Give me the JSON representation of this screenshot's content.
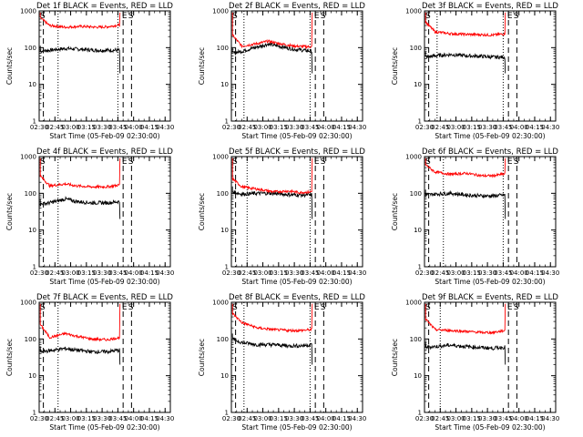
{
  "figure": {
    "colors": {
      "background": "#ffffff",
      "events": "#000000",
      "lld": "#ff0000",
      "axes": "#000000"
    }
  },
  "chart_data": [
    {
      "type": "line",
      "title": "Det 1f BLACK = Events, RED = LLD",
      "xlabel": "Start Time (05-Feb-09 02:30:00)",
      "ylabel": "Counts/sec",
      "yscale": "log",
      "ylim": [
        1,
        1000
      ],
      "y_ticks": [
        "1",
        "10",
        "100",
        "1000"
      ],
      "xlim": [
        "02:30",
        "04:35"
      ],
      "x_ticks": [
        "02:30",
        "02:45",
        "03:00",
        "03:15",
        "03:30",
        "03:45",
        "04:00",
        "04:15",
        "04:30"
      ],
      "vlines_dashed": [
        "02:34",
        "03:50",
        "03:58"
      ],
      "vlines_dotted": [
        "02:48",
        "03:45"
      ],
      "markers": [
        {
          "label": "S",
          "time": "02:30"
        },
        {
          "label": "E",
          "time": "03:48"
        },
        {
          "label": "S",
          "time": "03:54"
        }
      ],
      "series": [
        {
          "name": "Events",
          "color": "#000000",
          "x": [
            "02:31",
            "02:40",
            "02:55",
            "03:10",
            "03:25",
            "03:35",
            "03:47"
          ],
          "y": [
            80,
            85,
            95,
            90,
            85,
            85,
            85
          ]
        },
        {
          "name": "LLD",
          "color": "#ff0000",
          "x": [
            "02:31",
            "02:40",
            "02:55",
            "03:10",
            "03:25",
            "03:35",
            "03:47"
          ],
          "y": [
            650,
            400,
            360,
            380,
            360,
            370,
            420
          ]
        }
      ]
    },
    {
      "type": "line",
      "title": "Det 2f BLACK = Events, RED = LLD",
      "xlabel": "Start Time (05-Feb-09 02:30:00)",
      "ylabel": "Counts/sec",
      "yscale": "log",
      "ylim": [
        1,
        1000
      ],
      "y_ticks": [
        "1",
        "10",
        "100",
        "1000"
      ],
      "xlim": [
        "02:30",
        "04:35"
      ],
      "x_ticks": [
        "02:30",
        "02:45",
        "03:00",
        "03:15",
        "03:30",
        "03:45",
        "04:00",
        "04:15",
        "04:30"
      ],
      "vlines_dashed": [
        "02:34",
        "03:50",
        "03:58"
      ],
      "vlines_dotted": [
        "02:42",
        "03:45"
      ],
      "markers": [
        {
          "label": "S",
          "time": "02:30"
        },
        {
          "label": "E",
          "time": "03:48"
        },
        {
          "label": "S",
          "time": "03:54"
        }
      ],
      "series": [
        {
          "name": "Events",
          "color": "#000000",
          "x": [
            "02:31",
            "02:40",
            "02:55",
            "03:05",
            "03:15",
            "03:30",
            "03:47"
          ],
          "y": [
            70,
            80,
            105,
            125,
            110,
            90,
            80
          ]
        },
        {
          "name": "LLD",
          "color": "#ff0000",
          "x": [
            "02:31",
            "02:40",
            "02:55",
            "03:05",
            "03:15",
            "03:30",
            "03:47"
          ],
          "y": [
            220,
            110,
            130,
            150,
            130,
            110,
            105
          ]
        }
      ]
    },
    {
      "type": "line",
      "title": "Det 3f BLACK = Events, RED = LLD",
      "xlabel": "Start Time (05-Feb-09 02:30:00)",
      "ylabel": "Counts/sec",
      "yscale": "log",
      "ylim": [
        1,
        1000
      ],
      "y_ticks": [
        "1",
        "10",
        "100",
        "1000"
      ],
      "xlim": [
        "02:30",
        "04:35"
      ],
      "x_ticks": [
        "02:30",
        "02:45",
        "03:00",
        "03:15",
        "03:30",
        "03:45",
        "04:00",
        "04:15",
        "04:30"
      ],
      "vlines_dashed": [
        "02:34",
        "03:50",
        "03:58"
      ],
      "vlines_dotted": [
        "02:42",
        "03:45"
      ],
      "markers": [
        {
          "label": "S",
          "time": "02:30"
        },
        {
          "label": "E",
          "time": "03:48"
        },
        {
          "label": "S",
          "time": "03:54"
        }
      ],
      "series": [
        {
          "name": "Events",
          "color": "#000000",
          "x": [
            "02:31",
            "02:40",
            "02:55",
            "03:10",
            "03:25",
            "03:35",
            "03:47"
          ],
          "y": [
            55,
            60,
            65,
            60,
            58,
            55,
            55
          ]
        },
        {
          "name": "LLD",
          "color": "#ff0000",
          "x": [
            "02:31",
            "02:40",
            "02:55",
            "03:10",
            "03:25",
            "03:35",
            "03:47"
          ],
          "y": [
            500,
            270,
            240,
            230,
            225,
            220,
            240
          ]
        }
      ]
    },
    {
      "type": "line",
      "title": "Det 4f BLACK = Events, RED = LLD",
      "xlabel": "Start Time (05-Feb-09 02:30:00)",
      "ylabel": "Counts/sec",
      "yscale": "log",
      "ylim": [
        1,
        1000
      ],
      "y_ticks": [
        "1",
        "10",
        "100",
        "1000"
      ],
      "xlim": [
        "02:30",
        "04:35"
      ],
      "x_ticks": [
        "02:30",
        "02:45",
        "03:00",
        "03:15",
        "03:30",
        "03:45",
        "04:00",
        "04:15",
        "04:30"
      ],
      "vlines_dashed": [
        "02:34",
        "03:50",
        "03:58"
      ],
      "vlines_dotted": [
        "02:48"
      ],
      "markers": [
        {
          "label": "S",
          "time": "02:30"
        },
        {
          "label": "E",
          "time": "03:48"
        },
        {
          "label": "S",
          "time": "03:54"
        }
      ],
      "series": [
        {
          "name": "Events",
          "color": "#000000",
          "x": [
            "02:31",
            "02:40",
            "02:55",
            "03:05",
            "03:20",
            "03:35",
            "03:47"
          ],
          "y": [
            50,
            55,
            70,
            60,
            55,
            55,
            60
          ]
        },
        {
          "name": "LLD",
          "color": "#ff0000",
          "x": [
            "02:31",
            "02:40",
            "02:55",
            "03:05",
            "03:20",
            "03:35",
            "03:47"
          ],
          "y": [
            300,
            160,
            180,
            160,
            150,
            150,
            170
          ]
        }
      ]
    },
    {
      "type": "line",
      "title": "Det 5f BLACK = Events, RED = LLD",
      "xlabel": "Start Time (05-Feb-09 02:30:00)",
      "ylabel": "Counts/sec",
      "yscale": "log",
      "ylim": [
        1,
        1000
      ],
      "y_ticks": [
        "1",
        "10",
        "100",
        "1000"
      ],
      "xlim": [
        "02:30",
        "04:35"
      ],
      "x_ticks": [
        "02:30",
        "02:45",
        "03:00",
        "03:15",
        "03:30",
        "03:45",
        "04:00",
        "04:15",
        "04:30"
      ],
      "vlines_dashed": [
        "02:34",
        "03:50",
        "03:58"
      ],
      "vlines_dotted": [
        "02:45",
        "03:45"
      ],
      "markers": [
        {
          "label": "S",
          "time": "02:30"
        },
        {
          "label": "E",
          "time": "03:48"
        },
        {
          "label": "S",
          "time": "03:54"
        }
      ],
      "series": [
        {
          "name": "Events",
          "color": "#000000",
          "x": [
            "02:31",
            "02:40",
            "02:55",
            "03:10",
            "03:25",
            "03:35",
            "03:47"
          ],
          "y": [
            110,
            95,
            100,
            100,
            92,
            90,
            90
          ]
        },
        {
          "name": "LLD",
          "color": "#ff0000",
          "x": [
            "02:31",
            "02:40",
            "02:55",
            "03:10",
            "03:25",
            "03:35",
            "03:47"
          ],
          "y": [
            250,
            150,
            130,
            110,
            115,
            105,
            110
          ]
        }
      ]
    },
    {
      "type": "line",
      "title": "Det 6f BLACK = Events, RED = LLD",
      "xlabel": "Start Time (05-Feb-09 02:30:00)",
      "ylabel": "Counts/sec",
      "yscale": "log",
      "ylim": [
        1,
        1000
      ],
      "y_ticks": [
        "1",
        "10",
        "100",
        "1000"
      ],
      "xlim": [
        "02:30",
        "04:35"
      ],
      "x_ticks": [
        "02:30",
        "02:45",
        "03:00",
        "03:15",
        "03:30",
        "03:45",
        "04:00",
        "04:15",
        "04:30"
      ],
      "vlines_dashed": [
        "02:34",
        "03:50",
        "03:58"
      ],
      "vlines_dotted": [
        "02:48",
        "03:45"
      ],
      "markers": [
        {
          "label": "S",
          "time": "02:30"
        },
        {
          "label": "E",
          "time": "03:48"
        },
        {
          "label": "S",
          "time": "03:54"
        }
      ],
      "series": [
        {
          "name": "Events",
          "color": "#000000",
          "x": [
            "02:31",
            "02:40",
            "02:55",
            "03:10",
            "03:25",
            "03:35",
            "03:47"
          ],
          "y": [
            90,
            95,
            100,
            90,
            85,
            85,
            90
          ]
        },
        {
          "name": "LLD",
          "color": "#ff0000",
          "x": [
            "02:31",
            "02:40",
            "02:55",
            "03:10",
            "03:25",
            "03:35",
            "03:47"
          ],
          "y": [
            600,
            380,
            330,
            350,
            300,
            300,
            340
          ]
        }
      ]
    },
    {
      "type": "line",
      "title": "Det 7f BLACK = Events, RED = LLD",
      "xlabel": "Start Time (05-Feb-09 02:30:00)",
      "ylabel": "Counts/sec",
      "yscale": "log",
      "ylim": [
        1,
        1000
      ],
      "y_ticks": [
        "1",
        "10",
        "100",
        "1000"
      ],
      "xlim": [
        "02:30",
        "04:35"
      ],
      "x_ticks": [
        "02:30",
        "02:45",
        "03:00",
        "03:15",
        "03:30",
        "03:45",
        "04:00",
        "04:15",
        "04:30"
      ],
      "vlines_dashed": [
        "02:34",
        "03:50",
        "03:58"
      ],
      "vlines_dotted": [
        "02:48"
      ],
      "markers": [
        {
          "label": "S",
          "time": "02:30"
        },
        {
          "label": "E",
          "time": "03:48"
        },
        {
          "label": "S",
          "time": "03:54"
        }
      ],
      "series": [
        {
          "name": "Events",
          "color": "#000000",
          "x": [
            "02:31",
            "02:40",
            "02:55",
            "03:05",
            "03:20",
            "03:35",
            "03:47"
          ],
          "y": [
            45,
            48,
            55,
            50,
            45,
            45,
            50
          ]
        },
        {
          "name": "LLD",
          "color": "#ff0000",
          "x": [
            "02:31",
            "02:40",
            "02:55",
            "03:05",
            "03:20",
            "03:35",
            "03:47"
          ],
          "y": [
            250,
            110,
            140,
            120,
            100,
            95,
            110
          ]
        }
      ]
    },
    {
      "type": "line",
      "title": "Det 8f BLACK = Events, RED = LLD",
      "xlabel": "Start Time (05-Feb-09 02:30:00)",
      "ylabel": "Counts/sec",
      "yscale": "log",
      "ylim": [
        1,
        1000
      ],
      "y_ticks": [
        "1",
        "10",
        "100",
        "1000"
      ],
      "xlim": [
        "02:30",
        "04:35"
      ],
      "x_ticks": [
        "02:30",
        "02:45",
        "03:00",
        "03:15",
        "03:30",
        "03:45",
        "04:00",
        "04:15",
        "04:30"
      ],
      "vlines_dashed": [
        "02:34",
        "03:50",
        "03:58"
      ],
      "vlines_dotted": [
        "02:42",
        "03:45"
      ],
      "markers": [
        {
          "label": "S",
          "time": "02:30"
        },
        {
          "label": "E",
          "time": "03:48"
        },
        {
          "label": "S",
          "time": "03:54"
        }
      ],
      "series": [
        {
          "name": "Events",
          "color": "#000000",
          "x": [
            "02:31",
            "02:40",
            "02:55",
            "03:10",
            "03:25",
            "03:35",
            "03:47"
          ],
          "y": [
            100,
            80,
            70,
            70,
            65,
            65,
            70
          ]
        },
        {
          "name": "LLD",
          "color": "#ff0000",
          "x": [
            "02:31",
            "02:40",
            "02:55",
            "03:10",
            "03:25",
            "03:35",
            "03:47"
          ],
          "y": [
            500,
            280,
            200,
            180,
            170,
            170,
            180
          ]
        }
      ]
    },
    {
      "type": "line",
      "title": "Det 9f BLACK = Events, RED = LLD",
      "xlabel": "Start Time (05-Feb-09 02:30:00)",
      "ylabel": "Counts/sec",
      "yscale": "log",
      "ylim": [
        1,
        1000
      ],
      "y_ticks": [
        "1",
        "10",
        "100",
        "1000"
      ],
      "xlim": [
        "02:30",
        "04:35"
      ],
      "x_ticks": [
        "02:30",
        "02:45",
        "03:00",
        "03:15",
        "03:30",
        "03:45",
        "04:00",
        "04:15",
        "04:30"
      ],
      "vlines_dashed": [
        "02:34",
        "03:50",
        "03:58"
      ],
      "vlines_dotted": [
        "02:45"
      ],
      "markers": [
        {
          "label": "S",
          "time": "02:30"
        },
        {
          "label": "E",
          "time": "03:48"
        },
        {
          "label": "S",
          "time": "03:54"
        }
      ],
      "series": [
        {
          "name": "Events",
          "color": "#000000",
          "x": [
            "02:31",
            "02:40",
            "02:55",
            "03:10",
            "03:25",
            "03:35",
            "03:47"
          ],
          "y": [
            60,
            62,
            68,
            62,
            58,
            56,
            60
          ]
        },
        {
          "name": "LLD",
          "color": "#ff0000",
          "x": [
            "02:31",
            "02:40",
            "02:55",
            "03:10",
            "03:25",
            "03:35",
            "03:47"
          ],
          "y": [
            350,
            180,
            170,
            160,
            150,
            150,
            170
          ]
        }
      ]
    }
  ]
}
